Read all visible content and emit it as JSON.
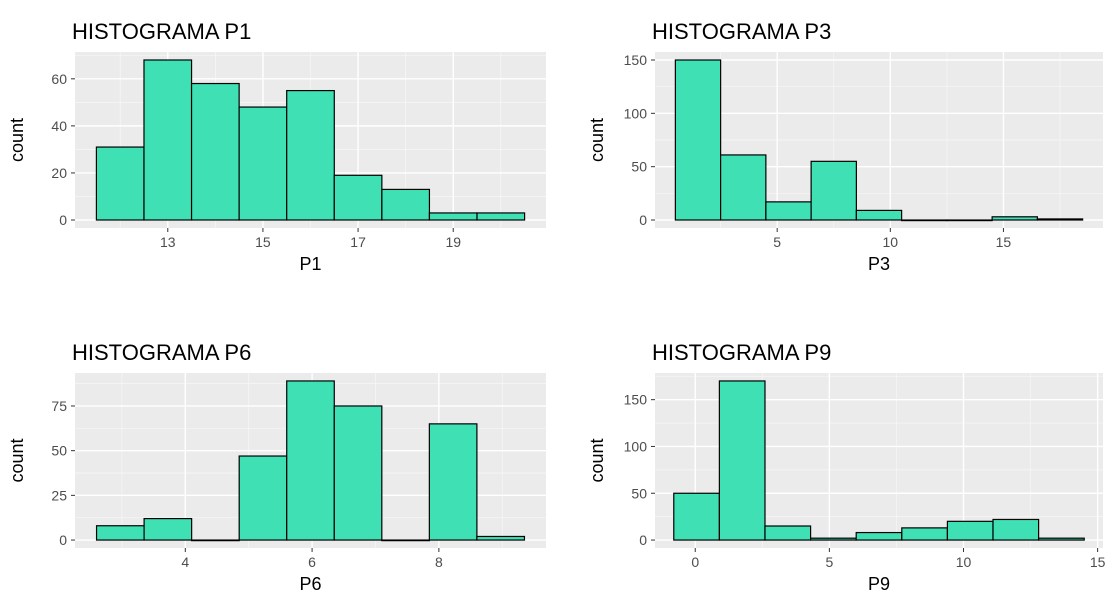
{
  "chart_data": [
    {
      "type": "bar",
      "title": "HISTOGRAMA P1",
      "xlabel": "P1",
      "ylabel": "count",
      "bins": [
        {
          "x0": 11.5,
          "x1": 12.5,
          "count": 31
        },
        {
          "x0": 12.5,
          "x1": 13.5,
          "count": 68
        },
        {
          "x0": 13.5,
          "x1": 14.5,
          "count": 58
        },
        {
          "x0": 14.5,
          "x1": 15.5,
          "count": 48
        },
        {
          "x0": 15.5,
          "x1": 16.5,
          "count": 55
        },
        {
          "x0": 16.5,
          "x1": 17.5,
          "count": 19
        },
        {
          "x0": 17.5,
          "x1": 18.5,
          "count": 13
        },
        {
          "x0": 18.5,
          "x1": 19.5,
          "count": 3
        },
        {
          "x0": 19.5,
          "x1": 20.5,
          "count": 3
        }
      ],
      "xlim": [
        11.05,
        20.95
      ],
      "ylim": [
        -3.4,
        71.4
      ],
      "xticks": [
        13,
        15,
        17,
        19
      ],
      "yticks": [
        0,
        20,
        40,
        60
      ],
      "fill": "#40e0b5",
      "grid": true
    },
    {
      "type": "bar",
      "title": "HISTOGRAMA P3",
      "xlabel": "P3",
      "ylabel": "count",
      "bins": [
        {
          "x0": 0.5,
          "x1": 2.5,
          "count": 150
        },
        {
          "x0": 2.5,
          "x1": 4.5,
          "count": 61
        },
        {
          "x0": 4.5,
          "x1": 6.5,
          "count": 17
        },
        {
          "x0": 6.5,
          "x1": 8.5,
          "count": 55
        },
        {
          "x0": 8.5,
          "x1": 10.5,
          "count": 9
        },
        {
          "x0": 10.5,
          "x1": 12.5,
          "count": 0
        },
        {
          "x0": 12.5,
          "x1": 14.5,
          "count": 0
        },
        {
          "x0": 14.5,
          "x1": 16.5,
          "count": 3
        },
        {
          "x0": 16.5,
          "x1": 18.5,
          "count": 1
        }
      ],
      "xlim": [
        -0.4,
        19.4
      ],
      "ylim": [
        -7.5,
        157.5
      ],
      "xticks": [
        5,
        10,
        15
      ],
      "yticks": [
        0,
        50,
        100,
        150
      ],
      "fill": "#40e0b5",
      "grid": true
    },
    {
      "type": "bar",
      "title": "HISTOGRAMA P6",
      "xlabel": "P6",
      "ylabel": "count",
      "bins": [
        {
          "x0": 2.6,
          "x1": 3.35,
          "count": 8
        },
        {
          "x0": 3.35,
          "x1": 4.1,
          "count": 12
        },
        {
          "x0": 4.1,
          "x1": 4.85,
          "count": 0
        },
        {
          "x0": 4.85,
          "x1": 5.6,
          "count": 47
        },
        {
          "x0": 5.6,
          "x1": 6.35,
          "count": 89
        },
        {
          "x0": 6.35,
          "x1": 7.1,
          "count": 75
        },
        {
          "x0": 7.1,
          "x1": 7.85,
          "count": 0
        },
        {
          "x0": 7.85,
          "x1": 8.6,
          "count": 65
        },
        {
          "x0": 8.6,
          "x1": 9.35,
          "count": 2
        }
      ],
      "xlim": [
        2.26,
        9.69
      ],
      "ylim": [
        -4.45,
        93.45
      ],
      "xticks": [
        4,
        6,
        8
      ],
      "yticks": [
        0,
        25,
        50,
        75
      ],
      "fill": "#40e0b5",
      "grid": true
    },
    {
      "type": "bar",
      "title": "HISTOGRAMA P9",
      "xlabel": "P9",
      "ylabel": "count",
      "bins": [
        {
          "x0": -0.8,
          "x1": 0.9,
          "count": 50
        },
        {
          "x0": 0.9,
          "x1": 2.6,
          "count": 170
        },
        {
          "x0": 2.6,
          "x1": 4.3,
          "count": 15
        },
        {
          "x0": 4.3,
          "x1": 6.0,
          "count": 2
        },
        {
          "x0": 6.0,
          "x1": 7.7,
          "count": 8
        },
        {
          "x0": 7.7,
          "x1": 9.4,
          "count": 13
        },
        {
          "x0": 9.4,
          "x1": 11.1,
          "count": 20
        },
        {
          "x0": 11.1,
          "x1": 12.8,
          "count": 22
        },
        {
          "x0": 12.8,
          "x1": 14.5,
          "count": 2
        }
      ],
      "xlim": [
        -1.5,
        15.2
      ],
      "ylim": [
        -8.5,
        178.5
      ],
      "xticks": [
        0,
        5,
        10,
        15
      ],
      "yticks": [
        0,
        50,
        100,
        150
      ],
      "fill": "#40e0b5",
      "grid": true
    }
  ]
}
